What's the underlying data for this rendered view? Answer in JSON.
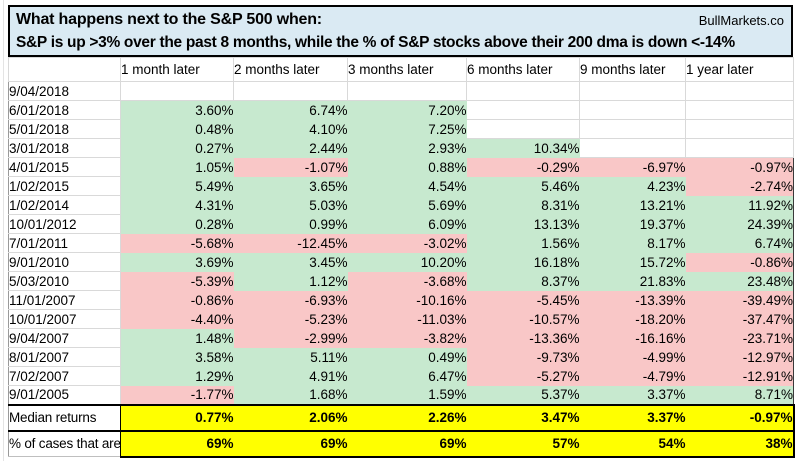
{
  "header": {
    "title": "What happens next to the S&P 500 when:",
    "brand": "BullMarkets.co",
    "subtitle": "S&P is up >3% over the past 8 months, while the % of S&P stocks above their 200 dma is down <-14%"
  },
  "table": {
    "columns": [
      "1 month later",
      "2 months later",
      "3 months later",
      "6 months later",
      "9 months later",
      "1 year later"
    ],
    "rows": [
      {
        "date": "9/04/2018",
        "values": [
          "",
          "",
          "",
          "",
          "",
          ""
        ]
      },
      {
        "date": "6/01/2018",
        "values": [
          "3.60%",
          "6.74%",
          "7.20%",
          "",
          "",
          ""
        ]
      },
      {
        "date": "5/01/2018",
        "values": [
          "0.48%",
          "4.10%",
          "7.25%",
          "",
          "",
          ""
        ]
      },
      {
        "date": "3/01/2018",
        "values": [
          "0.27%",
          "2.44%",
          "2.93%",
          "10.34%",
          "",
          ""
        ]
      },
      {
        "date": "4/01/2015",
        "values": [
          "1.05%",
          "-1.07%",
          "0.88%",
          "-0.29%",
          "-6.97%",
          "-0.97%"
        ]
      },
      {
        "date": "1/02/2015",
        "values": [
          "5.49%",
          "3.65%",
          "4.54%",
          "5.46%",
          "4.23%",
          "-2.74%"
        ]
      },
      {
        "date": "1/02/2014",
        "values": [
          "4.31%",
          "5.03%",
          "5.69%",
          "8.31%",
          "13.21%",
          "11.92%"
        ]
      },
      {
        "date": "10/01/2012",
        "values": [
          "0.28%",
          "0.99%",
          "6.09%",
          "13.13%",
          "19.37%",
          "24.39%"
        ]
      },
      {
        "date": "7/01/2011",
        "values": [
          "-5.68%",
          "-12.45%",
          "-3.02%",
          "1.56%",
          "8.17%",
          "6.74%"
        ]
      },
      {
        "date": "9/01/2010",
        "values": [
          "3.69%",
          "3.45%",
          "10.20%",
          "16.18%",
          "15.72%",
          "-0.86%"
        ]
      },
      {
        "date": "5/03/2010",
        "values": [
          "-5.39%",
          "1.12%",
          "-3.68%",
          "8.37%",
          "21.83%",
          "23.48%"
        ]
      },
      {
        "date": "11/01/2007",
        "values": [
          "-0.86%",
          "-6.93%",
          "-10.16%",
          "-5.45%",
          "-13.39%",
          "-39.49%"
        ]
      },
      {
        "date": "10/01/2007",
        "values": [
          "-4.40%",
          "-5.23%",
          "-11.03%",
          "-10.57%",
          "-18.20%",
          "-37.47%"
        ]
      },
      {
        "date": "9/04/2007",
        "values": [
          "1.48%",
          "-2.99%",
          "-3.82%",
          "-13.36%",
          "-16.16%",
          "-23.71%"
        ]
      },
      {
        "date": "8/01/2007",
        "values": [
          "3.58%",
          "5.11%",
          "0.49%",
          "-9.73%",
          "-4.99%",
          "-12.97%"
        ]
      },
      {
        "date": "7/02/2007",
        "values": [
          "1.29%",
          "4.91%",
          "6.47%",
          "-5.27%",
          "-4.79%",
          "-12.91%"
        ]
      },
      {
        "date": "9/01/2005",
        "values": [
          "-1.77%",
          "1.68%",
          "1.59%",
          "5.37%",
          "3.37%",
          "8.71%"
        ]
      }
    ],
    "summary": [
      {
        "label": "Median returns",
        "values": [
          "0.77%",
          "2.06%",
          "2.26%",
          "3.47%",
          "3.37%",
          "-0.97%"
        ]
      },
      {
        "label": "% of cases that are",
        "values": [
          "69%",
          "69%",
          "69%",
          "57%",
          "54%",
          "38%"
        ]
      }
    ]
  },
  "colors": {
    "title_bg": "#daeaf3",
    "positive_bg": "#c7e9cf",
    "positive_text": "#1e7b38",
    "negative_bg": "#f9c7c7",
    "negative_text": "#bd0000",
    "summary_bg": "#ffff00",
    "gridline": "#d9d9d9",
    "border": "#000000"
  }
}
